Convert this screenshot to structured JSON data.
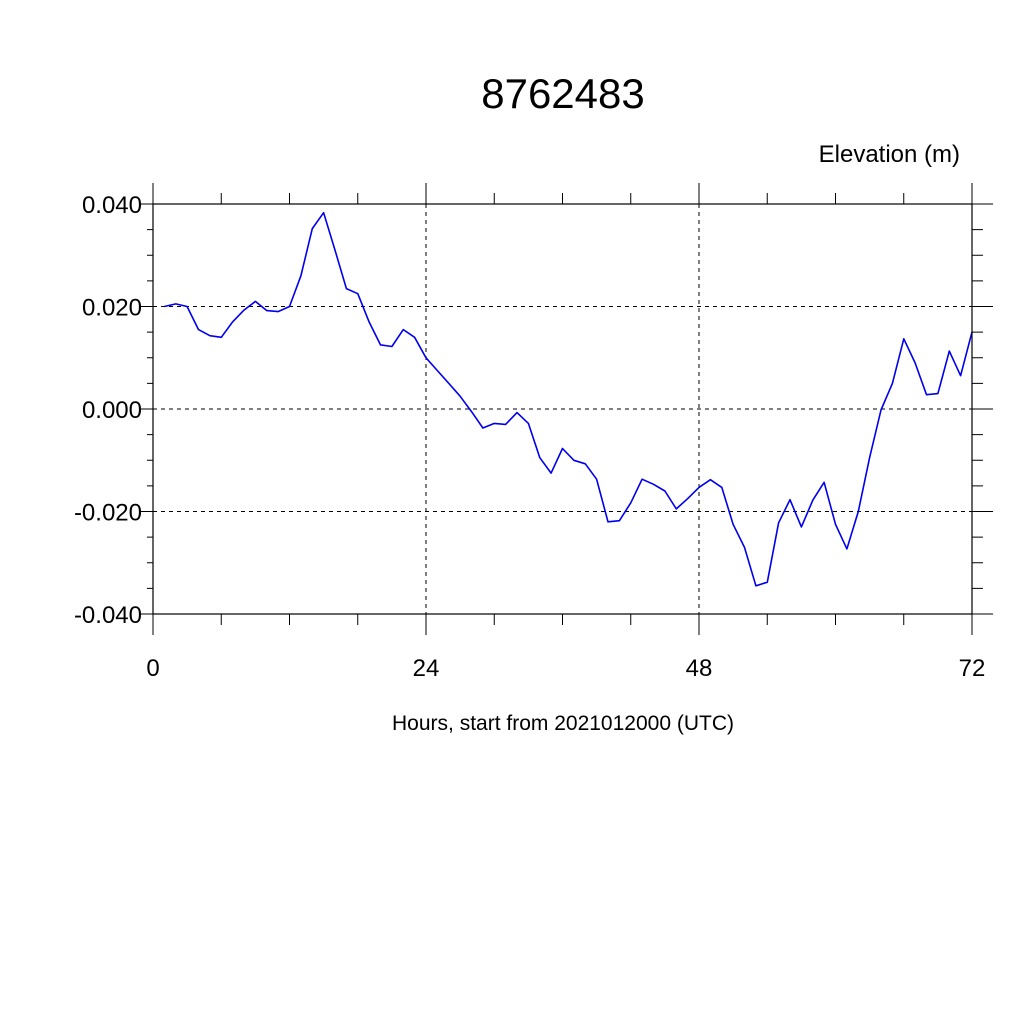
{
  "chart_data": {
    "type": "line",
    "title": "8762483",
    "units_label": "Elevation (m)",
    "xlabel": "Hours, start from 2021012000 (UTC)",
    "ylabel": "",
    "xlim": [
      0,
      72
    ],
    "ylim": [
      -0.04,
      0.04
    ],
    "x_major_ticks": [
      0,
      24,
      48,
      72
    ],
    "x_major_labels": [
      "0",
      "24",
      "48",
      "72"
    ],
    "x_minor_step": 6,
    "y_major_ticks": [
      -0.04,
      -0.02,
      0.0,
      0.02,
      0.04
    ],
    "y_major_labels": [
      "-0.040",
      "-0.020",
      "0.000",
      "0.020",
      "0.040"
    ],
    "y_minor_step": 0.005,
    "grid": true,
    "series": [
      {
        "color": "#0000ee",
        "x": [
          1,
          2,
          3,
          4,
          5,
          6,
          7,
          8,
          9,
          10,
          11,
          12,
          13,
          14,
          15,
          16,
          17,
          18,
          19,
          20,
          21,
          22,
          23,
          24,
          25,
          26,
          27,
          28,
          29,
          30,
          31,
          32,
          33,
          34,
          35,
          36,
          37,
          38,
          39,
          40,
          41,
          42,
          43,
          44,
          45,
          46,
          47,
          48,
          49,
          50,
          51,
          52,
          53,
          54,
          55,
          56,
          57,
          58,
          59,
          60,
          61,
          62,
          63,
          64,
          65,
          66,
          67,
          68,
          69,
          70,
          71,
          72
        ],
        "values": [
          0.02,
          0.0205,
          0.02,
          0.0155,
          0.0143,
          0.014,
          0.017,
          0.0193,
          0.021,
          0.0192,
          0.019,
          0.02,
          0.026,
          0.0352,
          0.0383,
          0.031,
          0.0235,
          0.0225,
          0.017,
          0.0125,
          0.0122,
          0.0155,
          0.014,
          0.01,
          0.0075,
          0.005,
          0.0025,
          -0.0005,
          -0.0037,
          -0.0028,
          -0.003,
          -0.0007,
          -0.0028,
          -0.0095,
          -0.0125,
          -0.0077,
          -0.01,
          -0.0107,
          -0.0137,
          -0.022,
          -0.0218,
          -0.0183,
          -0.0137,
          -0.0147,
          -0.016,
          -0.0195,
          -0.0175,
          -0.0153,
          -0.0138,
          -0.0153,
          -0.0225,
          -0.027,
          -0.0345,
          -0.0338,
          -0.0222,
          -0.0177,
          -0.023,
          -0.0178,
          -0.0143,
          -0.0225,
          -0.0273,
          -0.02,
          -0.0095,
          -0.0002,
          0.005,
          0.0137,
          0.009,
          0.0028,
          0.003,
          0.0113,
          0.0065,
          0.015
        ]
      }
    ]
  }
}
